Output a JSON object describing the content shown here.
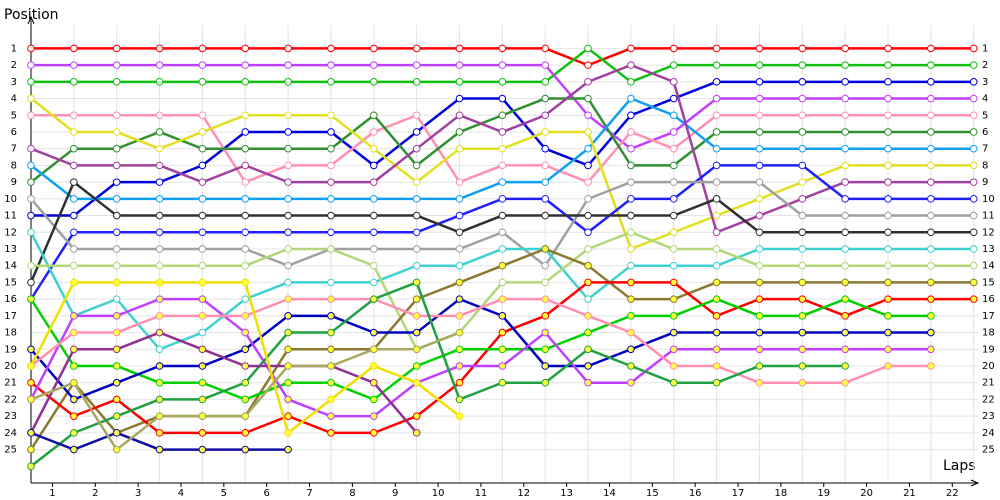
{
  "chart_data": {
    "type": "line",
    "y_label": "Position",
    "x_label": "Laps",
    "x": [
      0,
      1,
      2,
      3,
      4,
      5,
      6,
      7,
      8,
      9,
      10,
      11,
      12,
      13,
      14,
      15,
      16,
      17,
      18,
      19,
      20,
      21,
      22
    ],
    "xlim": [
      0,
      22.1
    ],
    "ylim": [
      -0.4,
      27
    ],
    "y_reversed": true,
    "grid": true,
    "xticks": [
      {
        "value": 0.5,
        "label": "1"
      },
      {
        "value": 1.5,
        "label": "2"
      },
      {
        "value": 2.5,
        "label": "3"
      },
      {
        "value": 3.5,
        "label": "4"
      },
      {
        "value": 4.5,
        "label": "5"
      },
      {
        "value": 5.5,
        "label": "6"
      },
      {
        "value": 6.5,
        "label": "7"
      },
      {
        "value": 7.5,
        "label": "8"
      },
      {
        "value": 8.5,
        "label": "9"
      },
      {
        "value": 9.5,
        "label": "10"
      },
      {
        "value": 10.5,
        "label": "11"
      },
      {
        "value": 11.5,
        "label": "12"
      },
      {
        "value": 12.5,
        "label": "13"
      },
      {
        "value": 13.5,
        "label": "14"
      },
      {
        "value": 14.5,
        "label": "15"
      },
      {
        "value": 15.5,
        "label": "16"
      },
      {
        "value": 16.5,
        "label": "17"
      },
      {
        "value": 17.5,
        "label": "18"
      },
      {
        "value": 18.5,
        "label": "19"
      },
      {
        "value": 19.5,
        "label": "20"
      },
      {
        "value": 20.5,
        "label": "21"
      },
      {
        "value": 21.5,
        "label": "22"
      }
    ],
    "yticks": [
      1,
      2,
      3,
      4,
      5,
      6,
      7,
      8,
      9,
      10,
      11,
      12,
      13,
      14,
      15,
      16,
      17,
      18,
      19,
      20,
      21,
      22,
      23,
      24,
      25
    ],
    "series": [
      {
        "color": "#ff0000",
        "marker_fill": "#ffffff",
        "values": [
          1,
          1,
          1,
          1,
          1,
          1,
          1,
          1,
          1,
          1,
          1,
          1,
          1,
          2,
          1,
          1,
          1,
          1,
          1,
          1,
          1,
          1,
          1
        ]
      },
      {
        "color": "#10c010",
        "marker_fill": "#ffffff",
        "values": [
          3,
          3,
          3,
          3,
          3,
          3,
          3,
          3,
          3,
          3,
          3,
          3,
          3,
          1,
          3,
          2,
          2,
          2,
          2,
          2,
          2,
          2,
          2
        ]
      },
      {
        "color": "#0000e0",
        "marker_fill": "#ffffff",
        "values": [
          11,
          11,
          9,
          9,
          8,
          6,
          6,
          6,
          8,
          6,
          4,
          4,
          7,
          8,
          5,
          4,
          3,
          3,
          3,
          3,
          3,
          3,
          3
        ]
      },
      {
        "color": "#c040ff",
        "marker_fill": "#ffffff",
        "values": [
          2,
          2,
          2,
          2,
          2,
          2,
          2,
          2,
          2,
          2,
          2,
          2,
          2,
          5,
          7,
          6,
          4,
          4,
          4,
          4,
          4,
          4,
          4
        ]
      },
      {
        "color": "#ff90b0",
        "marker_fill": "#ffffff",
        "values": [
          5,
          5,
          5,
          5,
          5,
          9,
          8,
          8,
          6,
          5,
          9,
          8,
          8,
          9,
          6,
          7,
          5,
          5,
          5,
          5,
          5,
          5,
          5
        ]
      },
      {
        "color": "#309030",
        "marker_fill": "#ffffff",
        "values": [
          9,
          7,
          7,
          6,
          7,
          7,
          7,
          7,
          5,
          8,
          6,
          5,
          4,
          4,
          8,
          8,
          6,
          6,
          6,
          6,
          6,
          6,
          6
        ]
      },
      {
        "color": "#10a0f0",
        "marker_fill": "#ffffff",
        "values": [
          8,
          10,
          10,
          10,
          10,
          10,
          10,
          10,
          10,
          10,
          10,
          9,
          9,
          7,
          4,
          5,
          7,
          7,
          7,
          7,
          7,
          7,
          7
        ]
      },
      {
        "color": "#e0e020",
        "marker_fill": "#ffffff",
        "values": [
          4,
          6,
          6,
          7,
          6,
          5,
          5,
          5,
          7,
          9,
          7,
          7,
          6,
          6,
          13,
          12,
          11,
          10,
          9,
          8,
          8,
          8,
          8
        ]
      },
      {
        "color": "#a040a0",
        "marker_fill": "#ffffff",
        "values": [
          7,
          8,
          8,
          8,
          9,
          8,
          9,
          9,
          9,
          7,
          5,
          6,
          5,
          3,
          2,
          3,
          12,
          11,
          10,
          9,
          9,
          9,
          9
        ]
      },
      {
        "color": "#2020ff",
        "marker_fill": "#ffffff",
        "values": [
          16,
          12,
          12,
          12,
          12,
          12,
          12,
          12,
          12,
          12,
          11,
          10,
          10,
          12,
          10,
          10,
          8,
          8,
          8,
          10,
          10,
          10,
          10
        ]
      },
      {
        "color": "#a0a0a0",
        "marker_fill": "#ffffff",
        "values": [
          10,
          13,
          13,
          13,
          13,
          13,
          14,
          13,
          13,
          13,
          13,
          12,
          14,
          10,
          9,
          9,
          9,
          9,
          11,
          11,
          11,
          11,
          11
        ]
      },
      {
        "color": "#303030",
        "marker_fill": "#ffffff",
        "values": [
          15,
          9,
          11,
          11,
          11,
          11,
          11,
          11,
          11,
          11,
          12,
          11,
          11,
          11,
          11,
          11,
          10,
          12,
          12,
          12,
          12,
          12,
          12
        ]
      },
      {
        "color": "#40d0d0",
        "marker_fill": "#ffffff",
        "values": [
          12,
          17,
          16,
          19,
          18,
          16,
          15,
          15,
          15,
          14,
          14,
          13,
          13,
          16,
          14,
          14,
          14,
          13,
          13,
          13,
          13,
          13,
          13
        ]
      },
      {
        "color": "#b0d878",
        "marker_fill": "#ffffff",
        "values": [
          14,
          14,
          14,
          14,
          14,
          14,
          13,
          13,
          14,
          19,
          18,
          15,
          15,
          13,
          12,
          13,
          13,
          14,
          14,
          14,
          14,
          14,
          14
        ]
      },
      {
        "color": "#8a7a30",
        "marker_fill": "#ffff40",
        "values": [
          25,
          21,
          24,
          23,
          23,
          23,
          19,
          19,
          19,
          16,
          15,
          14,
          13,
          14,
          16,
          16,
          15,
          15,
          15,
          15,
          15,
          15,
          15
        ]
      },
      {
        "color": "#ff0000",
        "marker_fill": "#ffff40",
        "values": [
          21,
          23,
          22,
          24,
          24,
          24,
          23,
          24,
          24,
          23,
          21,
          18,
          17,
          15,
          15,
          15,
          17,
          16,
          16,
          17,
          16,
          16,
          16
        ]
      },
      {
        "color": "#00d000",
        "marker_fill": "#ffff40",
        "values": [
          16,
          20,
          20,
          21,
          21,
          22,
          21,
          21,
          22,
          20,
          19,
          19,
          19,
          18,
          17,
          17,
          16,
          17,
          17,
          16,
          17,
          17,
          null
        ]
      },
      {
        "color": "#0000c0",
        "marker_fill": "#ffff40",
        "values": [
          19,
          22,
          21,
          20,
          20,
          19,
          17,
          17,
          18,
          18,
          16,
          17,
          20,
          20,
          19,
          18,
          18,
          18,
          18,
          18,
          18,
          18,
          null
        ]
      },
      {
        "color": "#c040ff",
        "marker_fill": "#ffff40",
        "values": [
          22,
          17,
          17,
          16,
          16,
          18,
          22,
          23,
          23,
          21,
          20,
          20,
          18,
          21,
          21,
          19,
          19,
          19,
          19,
          19,
          19,
          19,
          null
        ]
      },
      {
        "color": "#ff90b0",
        "marker_fill": "#ffff40",
        "values": [
          20,
          18,
          18,
          17,
          17,
          17,
          16,
          16,
          16,
          17,
          17,
          16,
          16,
          17,
          18,
          20,
          20,
          21,
          21,
          21,
          20,
          20,
          null
        ]
      },
      {
        "color": "#20a040",
        "marker_fill": "#ffff40",
        "values": [
          26,
          24,
          23,
          22,
          22,
          21,
          18,
          18,
          16,
          15,
          22,
          21,
          21,
          19,
          20,
          21,
          21,
          20,
          20,
          20,
          null,
          null,
          null
        ]
      },
      {
        "color": "#903090",
        "marker_fill": "#ffff40",
        "values": [
          24,
          19,
          19,
          18,
          19,
          20,
          20,
          20,
          21,
          24,
          null,
          null,
          null,
          null,
          null,
          null,
          null,
          null,
          null,
          null,
          null,
          null,
          null
        ]
      },
      {
        "color": "#f0e000",
        "marker_fill": "#ffff40",
        "values": [
          20,
          15,
          15,
          15,
          15,
          15,
          24,
          22,
          20,
          21,
          23,
          null,
          null,
          null,
          null,
          null,
          null,
          null,
          null,
          null,
          null,
          null,
          null
        ]
      },
      {
        "color": "#1010a0",
        "marker_fill": "#ffff40",
        "values": [
          24,
          25,
          24,
          25,
          25,
          25,
          25,
          null,
          null,
          null,
          null,
          null,
          null,
          null,
          null,
          null,
          null,
          null,
          null,
          null,
          null,
          null,
          null
        ]
      },
      {
        "color": "#a8a860",
        "marker_fill": "#ffff40",
        "values": [
          22,
          21,
          25,
          23,
          23,
          23,
          20,
          20,
          19,
          19,
          18,
          null,
          null,
          null,
          null,
          null,
          null,
          null,
          null,
          null,
          null,
          null,
          null
        ]
      }
    ]
  }
}
